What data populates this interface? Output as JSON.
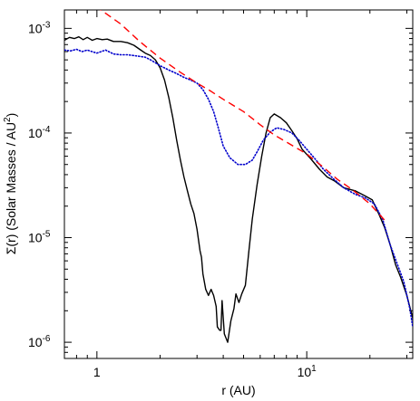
{
  "chart_data": {
    "type": "line",
    "xlabel": "r (AU)",
    "ylabel": {
      "prefix": "Σ(r) (Solar Masses / AU",
      "exp": "2",
      "suffix": ")"
    },
    "xscale": "log",
    "yscale": "log",
    "xlim": [
      0.7,
      32
    ],
    "ylim": [
      7e-07,
      0.0015
    ],
    "grid": false,
    "x_tick_labels": [
      {
        "value": 1,
        "text": "1"
      },
      {
        "value": 10,
        "base": "10",
        "exp": "1"
      }
    ],
    "y_tick_labels": [
      {
        "value": 0.001,
        "base": "10",
        "exp": "-3"
      },
      {
        "value": 0.0001,
        "base": "10",
        "exp": "-4"
      },
      {
        "value": 1e-05,
        "base": "10",
        "exp": "-5"
      },
      {
        "value": 1e-06,
        "base": "10",
        "exp": "-6"
      }
    ],
    "series": [
      {
        "style": "solid",
        "color": "#000000",
        "points": [
          [
            0.7,
            0.00077
          ],
          [
            0.74,
            0.00082
          ],
          [
            0.78,
            0.0008
          ],
          [
            0.82,
            0.00083
          ],
          [
            0.86,
            0.00078
          ],
          [
            0.9,
            0.00082
          ],
          [
            0.95,
            0.00077
          ],
          [
            1.0,
            0.0008
          ],
          [
            1.06,
            0.00078
          ],
          [
            1.12,
            0.00079
          ],
          [
            1.2,
            0.00075
          ],
          [
            1.3,
            0.00075
          ],
          [
            1.4,
            0.00073
          ],
          [
            1.5,
            0.00069
          ],
          [
            1.6,
            0.00063
          ],
          [
            1.7,
            0.00058
          ],
          [
            1.8,
            0.00055
          ],
          [
            1.9,
            0.0005
          ],
          [
            2.0,
            0.00042
          ],
          [
            2.1,
            0.00032
          ],
          [
            2.2,
            0.00022
          ],
          [
            2.3,
            0.00014
          ],
          [
            2.4,
            8.5e-05
          ],
          [
            2.5,
            5.5e-05
          ],
          [
            2.6,
            3.8e-05
          ],
          [
            2.7,
            2.8e-05
          ],
          [
            2.8,
            2.1e-05
          ],
          [
            2.9,
            1.7e-05
          ],
          [
            3.0,
            1.2e-05
          ],
          [
            3.1,
            7.5e-06
          ],
          [
            3.15,
            6.5e-06
          ],
          [
            3.2,
            4.5e-06
          ],
          [
            3.3,
            3.2e-06
          ],
          [
            3.4,
            2.8e-06
          ],
          [
            3.5,
            3.2e-06
          ],
          [
            3.6,
            2.8e-06
          ],
          [
            3.7,
            2.2e-06
          ],
          [
            3.75,
            1.4e-06
          ],
          [
            3.85,
            1.3e-06
          ],
          [
            3.9,
            1.3e-06
          ],
          [
            3.95,
            2.5e-06
          ],
          [
            4.05,
            1.2e-06
          ],
          [
            4.2,
            1e-06
          ],
          [
            4.35,
            1.6e-06
          ],
          [
            4.5,
            2.1e-06
          ],
          [
            4.6,
            2.9e-06
          ],
          [
            4.75,
            2.4e-06
          ],
          [
            4.9,
            2.9e-06
          ],
          [
            5.1,
            3.5e-06
          ],
          [
            5.3,
            7.5e-06
          ],
          [
            5.5,
            1.5e-05
          ],
          [
            5.8,
            3.2e-05
          ],
          [
            6.1,
            6e-05
          ],
          [
            6.4,
            0.0001
          ],
          [
            6.7,
            0.00014
          ],
          [
            7.0,
            0.000152
          ],
          [
            7.5,
            0.00014
          ],
          [
            8.0,
            0.000125
          ],
          [
            8.5,
            0.000105
          ],
          [
            9.0,
            8.8e-05
          ],
          [
            9.5,
            7e-05
          ],
          [
            10.5,
            5.6e-05
          ],
          [
            11.5,
            4.5e-05
          ],
          [
            12.5,
            3.8e-05
          ],
          [
            13.5,
            3.5e-05
          ],
          [
            15,
            3e-05
          ],
          [
            17,
            2.8e-05
          ],
          [
            19,
            2.5e-05
          ],
          [
            20.5,
            2.3e-05
          ],
          [
            22,
            1.7e-05
          ],
          [
            23.5,
            1.25e-05
          ],
          [
            25,
            8.5e-06
          ],
          [
            26.5,
            5.5e-06
          ],
          [
            28,
            4.2e-06
          ],
          [
            30,
            2.8e-06
          ],
          [
            32,
            1.7e-06
          ]
        ]
      },
      {
        "style": "dotted",
        "color": "#0000cc",
        "points": [
          [
            0.7,
            0.00062
          ],
          [
            0.75,
            0.00061
          ],
          [
            0.8,
            0.00063
          ],
          [
            0.85,
            0.0006
          ],
          [
            0.9,
            0.00062
          ],
          [
            1.0,
            0.00058
          ],
          [
            1.1,
            0.00062
          ],
          [
            1.2,
            0.00057
          ],
          [
            1.3,
            0.00056
          ],
          [
            1.4,
            0.00056
          ],
          [
            1.5,
            0.00055
          ],
          [
            1.6,
            0.00054
          ],
          [
            1.7,
            0.00053
          ],
          [
            1.8,
            0.0005
          ],
          [
            1.9,
            0.00047
          ],
          [
            2.0,
            0.00044
          ],
          [
            2.2,
            0.0004
          ],
          [
            2.4,
            0.00037
          ],
          [
            2.6,
            0.00034
          ],
          [
            2.8,
            0.00032
          ],
          [
            3.0,
            0.0003
          ],
          [
            3.2,
            0.00026
          ],
          [
            3.4,
            0.00021
          ],
          [
            3.6,
            0.00016
          ],
          [
            3.8,
            0.00011
          ],
          [
            4.0,
            7.5e-05
          ],
          [
            4.3,
            5.8e-05
          ],
          [
            4.7,
            5e-05
          ],
          [
            5.1,
            5e-05
          ],
          [
            5.5,
            5.5e-05
          ],
          [
            5.8,
            6.6e-05
          ],
          [
            6.2,
            8.5e-05
          ],
          [
            6.7,
            0.000102
          ],
          [
            7.2,
            0.000112
          ],
          [
            7.8,
            0.000108
          ],
          [
            8.5,
            0.0001
          ],
          [
            9.2,
            8.5e-05
          ],
          [
            10,
            7e-05
          ],
          [
            11,
            5.6e-05
          ],
          [
            12,
            4.5e-05
          ],
          [
            13.5,
            3.6e-05
          ],
          [
            15,
            3e-05
          ],
          [
            17,
            2.6e-05
          ],
          [
            19,
            2.4e-05
          ],
          [
            21,
            2.1e-05
          ],
          [
            23,
            1.5e-05
          ],
          [
            25,
            8.5e-06
          ],
          [
            27,
            5.6e-06
          ],
          [
            29,
            3.8e-06
          ],
          [
            31,
            2.1e-06
          ],
          [
            32,
            1.4e-06
          ]
        ]
      },
      {
        "style": "dashed",
        "color": "#ff0000",
        "points": [
          [
            0.72,
            0.0026
          ],
          [
            1.0,
            0.0016
          ],
          [
            1.3,
            0.0011
          ],
          [
            1.6,
            0.00075
          ],
          [
            2.0,
            0.00052
          ],
          [
            2.5,
            0.00038
          ],
          [
            3.0,
            0.0003
          ],
          [
            3.5,
            0.00025
          ],
          [
            4.0,
            0.00021
          ],
          [
            5.0,
            0.00016
          ],
          [
            6.0,
            0.00012
          ],
          [
            7.0,
            9.6e-05
          ],
          [
            8.0,
            8.2e-05
          ],
          [
            10,
            6.3e-05
          ],
          [
            12,
            4.7e-05
          ],
          [
            14,
            3.6e-05
          ],
          [
            16,
            3e-05
          ],
          [
            18,
            2.5e-05
          ],
          [
            20,
            2.1e-05
          ],
          [
            22,
            1.7e-05
          ],
          [
            24,
            1.4e-05
          ]
        ]
      }
    ]
  }
}
